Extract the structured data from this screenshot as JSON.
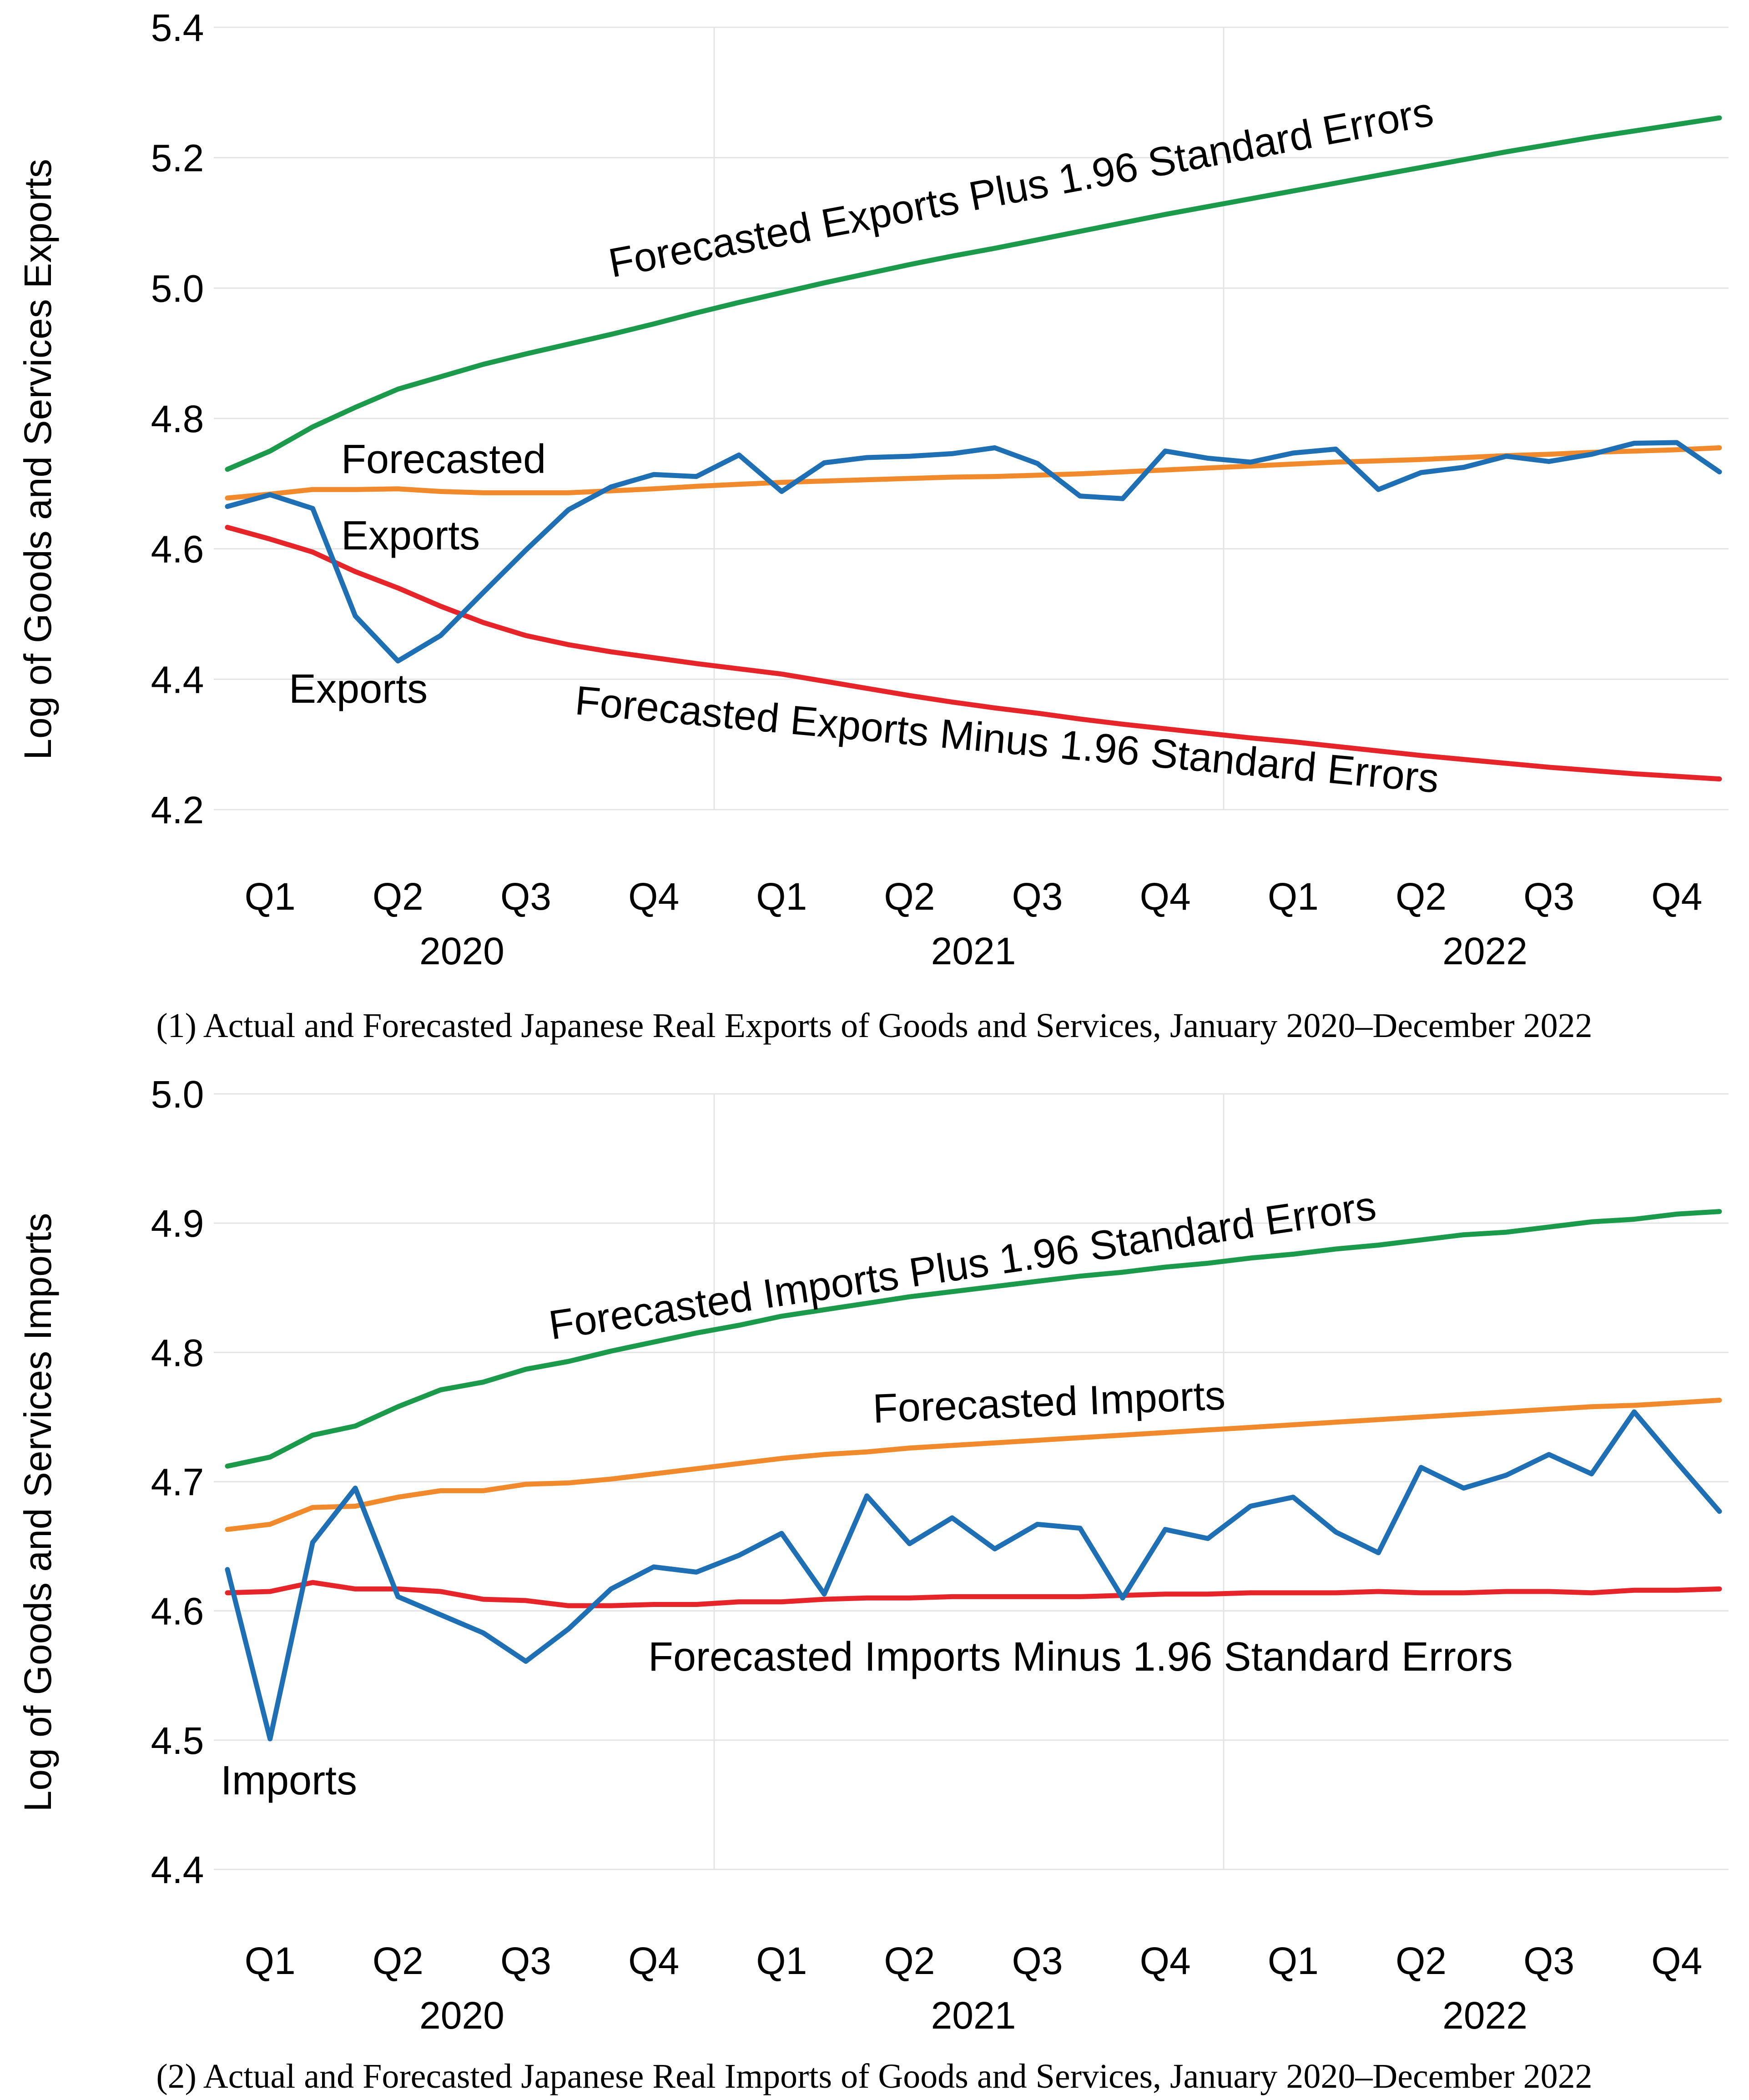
{
  "colors": {
    "actual": "#1F6FB5",
    "forecast": "#F08A2C",
    "upper": "#1B9A4B",
    "lower": "#E5252A",
    "grid": "#e4e4e4"
  },
  "chart_data": [
    {
      "type": "line",
      "title": "",
      "caption": "(1) Actual and Forecasted Japanese Real Exports of Goods and Services, January 2020–December 2022",
      "ylabel": "Log of Goods and Services Exports",
      "xlabel": "",
      "ylim": [
        4.2,
        5.4
      ],
      "yticks": [
        "5.4",
        "5.2",
        "5.0",
        "4.8",
        "4.6",
        "4.4",
        "4.2"
      ],
      "quarter_labels": [
        "Q1",
        "Q2",
        "Q3",
        "Q4",
        "Q1",
        "Q2",
        "Q3",
        "Q4",
        "Q1",
        "Q2",
        "Q3",
        "Q4"
      ],
      "year_labels": [
        "2020",
        "2021",
        "2022"
      ],
      "x": [
        1,
        2,
        3,
        4,
        5,
        6,
        7,
        8,
        9,
        10,
        11,
        12,
        13,
        14,
        15,
        16,
        17,
        18,
        19,
        20,
        21,
        22,
        23,
        24,
        25,
        26,
        27,
        28,
        29,
        30,
        31,
        32,
        33,
        34,
        35,
        36
      ],
      "series": [
        {
          "name": "Forecasted Exports Plus 1.96 Standard Errors",
          "color_key": "upper",
          "values": [
            4.722,
            4.75,
            4.787,
            4.817,
            4.845,
            4.864,
            4.883,
            4.899,
            4.914,
            4.929,
            4.945,
            4.962,
            4.978,
            4.993,
            5.008,
            5.022,
            5.036,
            5.049,
            5.061,
            5.074,
            5.087,
            5.1,
            5.113,
            5.125,
            5.137,
            5.149,
            5.161,
            5.173,
            5.185,
            5.197,
            5.209,
            5.22,
            5.231,
            5.241,
            5.251,
            5.261
          ]
        },
        {
          "name": "Forecasted Exports",
          "color_key": "forecast",
          "values": [
            4.678,
            4.684,
            4.691,
            4.691,
            4.692,
            4.688,
            4.686,
            4.686,
            4.686,
            4.689,
            4.692,
            4.696,
            4.699,
            4.702,
            4.704,
            4.706,
            4.708,
            4.71,
            4.711,
            4.713,
            4.715,
            4.718,
            4.721,
            4.724,
            4.727,
            4.73,
            4.733,
            4.735,
            4.737,
            4.74,
            4.743,
            4.745,
            4.748,
            4.75,
            4.752,
            4.755
          ]
        },
        {
          "name": "Forecasted Exports Minus 1.96 Standard Errors",
          "color_key": "lower",
          "values": [
            4.633,
            4.615,
            4.595,
            4.565,
            4.54,
            4.512,
            4.487,
            4.467,
            4.453,
            4.442,
            4.433,
            4.424,
            4.416,
            4.408,
            4.397,
            4.386,
            4.375,
            4.365,
            4.356,
            4.348,
            4.339,
            4.331,
            4.324,
            4.317,
            4.31,
            4.304,
            4.297,
            4.29,
            4.283,
            4.277,
            4.271,
            4.265,
            4.26,
            4.255,
            4.251,
            4.247
          ]
        },
        {
          "name": "Exports",
          "color_key": "actual",
          "values": [
            4.665,
            4.683,
            4.662,
            4.497,
            4.428,
            4.467,
            4.533,
            4.598,
            4.66,
            4.695,
            4.714,
            4.711,
            4.744,
            4.688,
            4.732,
            4.74,
            4.742,
            4.746,
            4.755,
            4.731,
            4.681,
            4.677,
            4.75,
            4.739,
            4.733,
            4.747,
            4.753,
            4.691,
            4.717,
            4.725,
            4.742,
            4.734,
            4.745,
            4.762,
            4.763,
            4.718
          ]
        }
      ],
      "annotations": [
        "Forecasted Exports Plus 1.96 Standard Errors",
        "Forecasted",
        "Exports",
        "Exports",
        "Forecasted Exports Minus 1.96 Standard Errors"
      ]
    },
    {
      "type": "line",
      "title": "",
      "caption": "(2) Actual and Forecasted Japanese Real Imports of Goods and Services, January 2020–December 2022",
      "ylabel": "Log of Goods and Services Imports",
      "xlabel": "",
      "ylim": [
        4.4,
        5.0
      ],
      "yticks": [
        "5.0",
        "4.9",
        "4.8",
        "4.7",
        "4.6",
        "4.5",
        "4.4"
      ],
      "quarter_labels": [
        "Q1",
        "Q2",
        "Q3",
        "Q4",
        "Q1",
        "Q2",
        "Q3",
        "Q4",
        "Q1",
        "Q2",
        "Q3",
        "Q4"
      ],
      "year_labels": [
        "2020",
        "2021",
        "2022"
      ],
      "x": [
        1,
        2,
        3,
        4,
        5,
        6,
        7,
        8,
        9,
        10,
        11,
        12,
        13,
        14,
        15,
        16,
        17,
        18,
        19,
        20,
        21,
        22,
        23,
        24,
        25,
        26,
        27,
        28,
        29,
        30,
        31,
        32,
        33,
        34,
        35,
        36
      ],
      "series": [
        {
          "name": "Forecasted Imports Plus 1.96 Standard Errors",
          "color_key": "upper",
          "values": [
            4.712,
            4.719,
            4.736,
            4.743,
            4.758,
            4.771,
            4.777,
            4.787,
            4.793,
            4.801,
            4.808,
            4.815,
            4.821,
            4.828,
            4.833,
            4.838,
            4.843,
            4.847,
            4.851,
            4.855,
            4.859,
            4.862,
            4.866,
            4.869,
            4.873,
            4.876,
            4.88,
            4.883,
            4.887,
            4.891,
            4.893,
            4.897,
            4.901,
            4.903,
            4.907,
            4.909
          ]
        },
        {
          "name": "Forecasted Imports",
          "color_key": "forecast",
          "values": [
            4.663,
            4.667,
            4.68,
            4.681,
            4.688,
            4.693,
            4.693,
            4.698,
            4.699,
            4.702,
            4.706,
            4.71,
            4.714,
            4.718,
            4.721,
            4.723,
            4.726,
            4.728,
            4.73,
            4.732,
            4.734,
            4.736,
            4.738,
            4.74,
            4.742,
            4.744,
            4.746,
            4.748,
            4.75,
            4.752,
            4.754,
            4.756,
            4.758,
            4.759,
            4.761,
            4.763
          ]
        },
        {
          "name": "Forecasted Imports Minus 1.96 Standard Errors",
          "color_key": "lower",
          "values": [
            4.614,
            4.615,
            4.622,
            4.617,
            4.617,
            4.615,
            4.609,
            4.608,
            4.604,
            4.604,
            4.605,
            4.605,
            4.607,
            4.607,
            4.609,
            4.61,
            4.61,
            4.611,
            4.611,
            4.611,
            4.611,
            4.612,
            4.613,
            4.613,
            4.614,
            4.614,
            4.614,
            4.615,
            4.614,
            4.614,
            4.615,
            4.615,
            4.614,
            4.616,
            4.616,
            4.617
          ]
        },
        {
          "name": "Imports",
          "color_key": "actual",
          "values": [
            4.632,
            4.501,
            4.653,
            4.695,
            4.611,
            4.597,
            4.583,
            4.561,
            4.586,
            4.617,
            4.634,
            4.63,
            4.643,
            4.66,
            4.613,
            4.689,
            4.652,
            4.672,
            4.648,
            4.667,
            4.664,
            4.61,
            4.663,
            4.656,
            4.681,
            4.688,
            4.661,
            4.645,
            4.711,
            4.695,
            4.705,
            4.721,
            4.706,
            4.754,
            4.715,
            4.677
          ]
        }
      ],
      "annotations": [
        "Forecasted Imports Plus 1.96 Standard Errors",
        "Forecasted Imports",
        "Imports",
        "Forecasted Imports Minus 1.96 Standard Errors"
      ]
    }
  ]
}
